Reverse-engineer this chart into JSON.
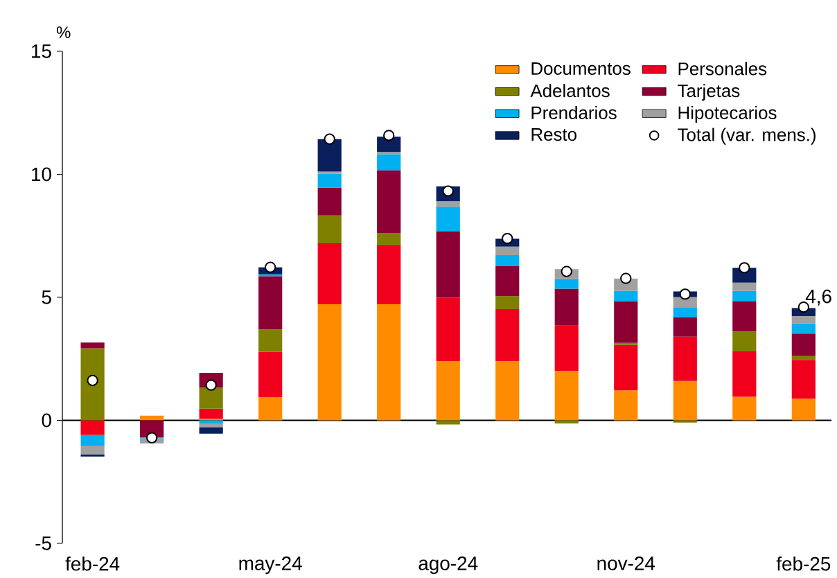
{
  "chart_data": {
    "type": "bar",
    "stacked": true,
    "ylabel": "%",
    "categories": [
      "feb-24",
      null,
      null,
      "may-24",
      null,
      null,
      "ago-24",
      null,
      null,
      "nov-24",
      null,
      null,
      "feb-25"
    ],
    "ylim": [
      -5,
      15
    ],
    "yticks": [
      -5,
      0,
      5,
      10,
      15
    ],
    "legend": "top right",
    "series": [
      {
        "name": "Documentos",
        "color": "#ff8c00",
        "values": [
          null,
          0.19,
          0.06,
          0.94,
          4.72,
          4.72,
          2.41,
          2.41,
          2.01,
          1.22,
          1.6,
          0.96,
          0.88
        ]
      },
      {
        "name": "Personales",
        "color": "#f0001c",
        "values": [
          -0.6,
          null,
          0.41,
          1.84,
          2.48,
          2.39,
          2.58,
          2.11,
          1.84,
          1.84,
          1.8,
          1.84,
          1.58
        ]
      },
      {
        "name": "Adelantos",
        "color": "#7f7f00",
        "values": [
          2.93,
          null,
          0.86,
          0.92,
          1.13,
          0.51,
          -0.17,
          0.53,
          -0.13,
          0.09,
          -0.09,
          0.81,
          0.15
        ]
      },
      {
        "name": "Tarjetas",
        "color": "#8c0033",
        "values": [
          0.23,
          -0.7,
          0.6,
          2.16,
          1.13,
          2.54,
          2.69,
          1.22,
          1.5,
          1.69,
          0.79,
          1.22,
          0.92
        ]
      },
      {
        "name": "Prendarios",
        "color": "#00b0f0",
        "values": [
          -0.43,
          -0.04,
          -0.15,
          0.08,
          0.56,
          0.66,
          1.0,
          0.45,
          0.39,
          0.43,
          0.41,
          0.43,
          0.41
        ]
      },
      {
        "name": "Hipotecarios",
        "color": "#a0a0a0",
        "values": [
          -0.36,
          -0.2,
          -0.13,
          null,
          0.09,
          0.09,
          0.23,
          0.34,
          0.41,
          0.49,
          0.41,
          0.34,
          0.3
        ]
      },
      {
        "name": "Resto",
        "color": "#0a1f5c",
        "values": [
          -0.08,
          null,
          -0.26,
          0.28,
          1.32,
          0.62,
          0.6,
          0.32,
          null,
          null,
          0.23,
          0.6,
          0.32
        ]
      },
      {
        "name": "Total (var. mens.)",
        "type": "scatter",
        "marker": "circle",
        "color": "#ffffff",
        "values": [
          1.62,
          -0.71,
          1.43,
          6.22,
          11.43,
          11.58,
          9.32,
          7.39,
          6.05,
          5.77,
          5.13,
          6.2,
          4.6
        ],
        "value_labels": [
          null,
          null,
          null,
          null,
          null,
          null,
          null,
          null,
          null,
          null,
          null,
          null,
          "4,6"
        ]
      }
    ]
  }
}
